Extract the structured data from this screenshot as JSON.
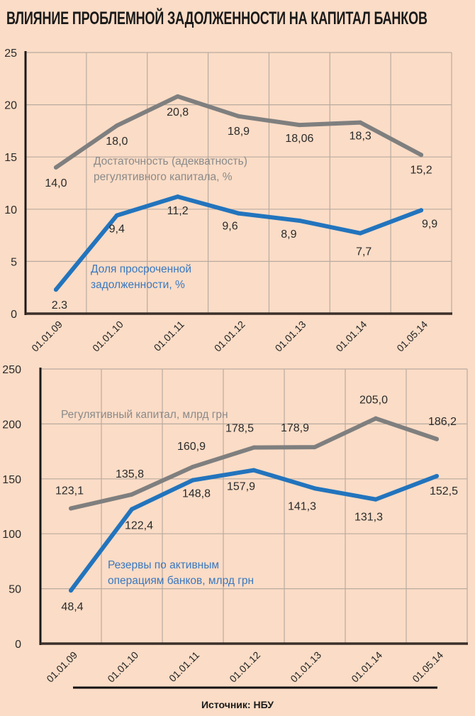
{
  "title": "ВЛИЯНИЕ ПРОБЛЕМНОЙ ЗАДОЛЖЕННОСТИ НА КАПИТАЛ БАНКОВ",
  "source": "Источник: НБУ",
  "colors": {
    "background": "#fbdcc6",
    "gray_series": "#7f7f7f",
    "blue_series": "#2274bd",
    "gray_annotation": "#8a8a8a",
    "blue_annotation": "#3a78bf",
    "grid": "#b9aba0",
    "axis": "#1a1a1a"
  },
  "chart_data": [
    {
      "type": "line",
      "title": "ВЛИЯНИЕ ПРОБЛЕМНОЙ ЗАДОЛЖЕННОСТИ НА КАПИТАЛ БАНКОВ",
      "categories": [
        "01.01.09",
        "01.01.10",
        "01.01.11",
        "01.01.12",
        "01.01.13",
        "01.01.14",
        "01.05.14"
      ],
      "ylim": [
        0,
        25
      ],
      "yticks": [
        "0",
        "5",
        "10",
        "15",
        "20",
        "25"
      ],
      "grid": true,
      "xlabel": "",
      "ylabel": "",
      "series": [
        {
          "name": "Достаточность (адекватность) регулятивного капитала, %",
          "color": "gray",
          "values": [
            14.0,
            18.0,
            20.8,
            18.9,
            18.06,
            18.3,
            15.2
          ],
          "labels": [
            "14,0",
            "18,0",
            "20,8",
            "18,9",
            "18,06",
            "18,3",
            "15,2"
          ],
          "annotation_lines": [
            "Достаточность (адекватность)",
            "регулятивного капитала, %"
          ]
        },
        {
          "name": "Доля просроченной задолженности, %",
          "color": "blue",
          "values": [
            2.3,
            9.4,
            11.2,
            9.6,
            8.9,
            7.7,
            9.9
          ],
          "labels": [
            "2.3",
            "9,4",
            "11,2",
            "9,6",
            "8,9",
            "7,7",
            "9,9"
          ],
          "annotation_lines": [
            "Доля просроченной",
            "задолженности, %"
          ]
        }
      ]
    },
    {
      "type": "line",
      "title": "",
      "categories": [
        "01.01.09",
        "01.01.10",
        "01.01.11",
        "01.01.12",
        "01.01.13",
        "01.01.14",
        "01.05.14"
      ],
      "ylim": [
        0,
        250
      ],
      "yticks": [
        "0",
        "50",
        "100",
        "150",
        "200",
        "250"
      ],
      "grid": true,
      "xlabel": "",
      "ylabel": "",
      "series": [
        {
          "name": "Регулятивный капитал, млрд грн",
          "color": "gray",
          "values": [
            123.1,
            135.8,
            160.9,
            178.5,
            178.9,
            205.0,
            186.2
          ],
          "labels": [
            "123,1",
            "135,8",
            "160,9",
            "178,5",
            "178,9",
            "205,0",
            "186,2"
          ],
          "annotation_lines": [
            "Регулятивный капитал, млрд грн"
          ]
        },
        {
          "name": "Резервы по активным операциям банков, млрд грн",
          "color": "blue",
          "values": [
            48.4,
            122.4,
            148.8,
            157.9,
            141.3,
            131.3,
            152.5
          ],
          "labels": [
            "48,4",
            "122,4",
            "148,8",
            "157,9",
            "141,3",
            "131,3",
            "152,5"
          ],
          "annotation_lines": [
            "Резервы по активным",
            "операциям банков, млрд грн"
          ]
        }
      ]
    }
  ]
}
